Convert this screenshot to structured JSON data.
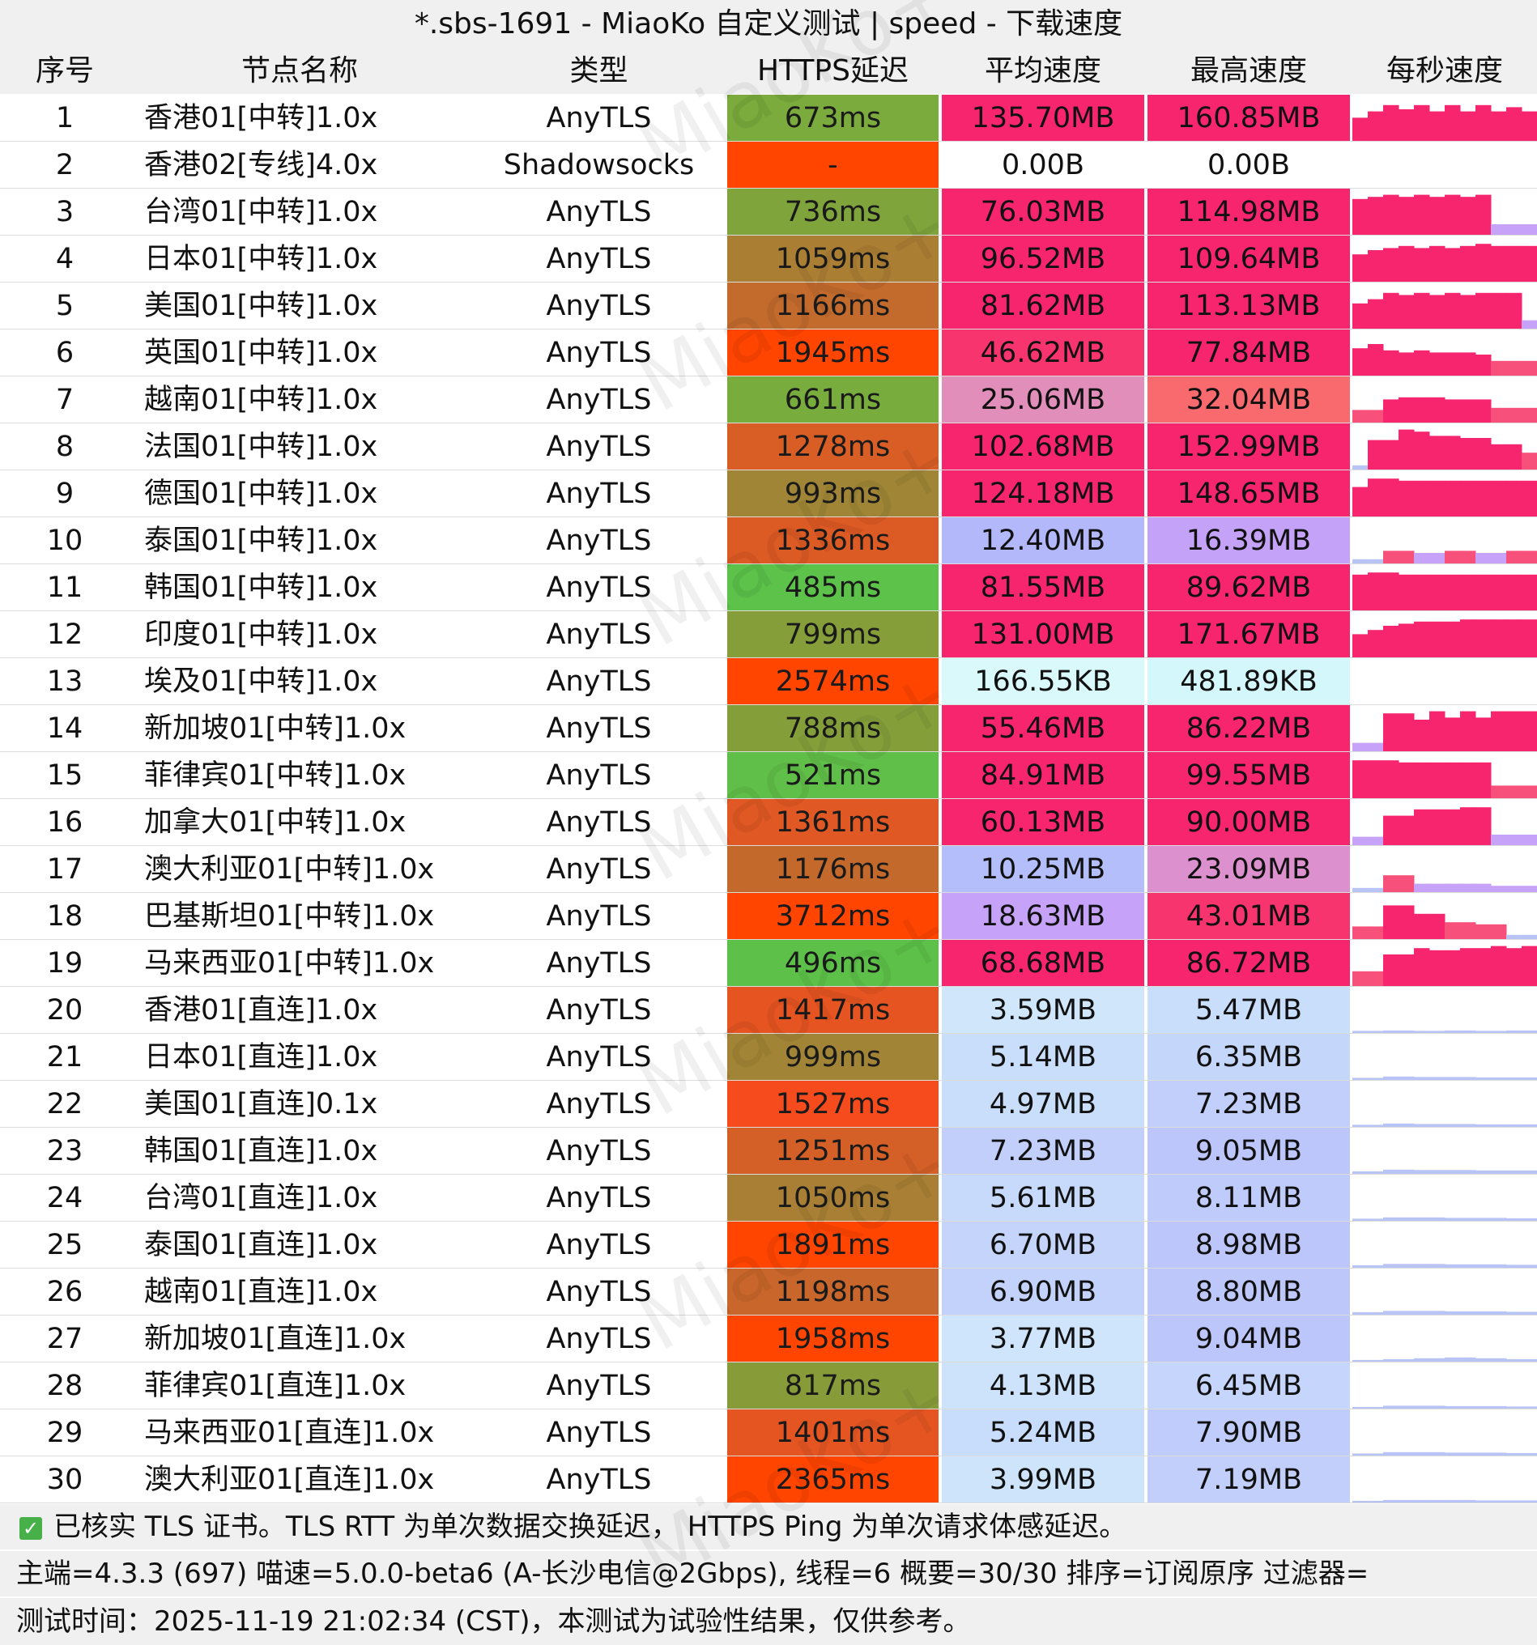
{
  "window": {
    "title": "*.sbs-1691 - MiaoKo 自定义测试 | speed - 下载速度"
  },
  "watermark": "MiaoKo+",
  "columns": {
    "index": "序号",
    "name": "节点名称",
    "type": "类型",
    "latency": "HTTPS延迟",
    "avg_speed": "平均速度",
    "max_speed": "最高速度",
    "per_second": "每秒速度"
  },
  "rows": [
    {
      "idx": "1",
      "name": "香港01[中转]1.0x",
      "type": "AnyTLS",
      "latency": "673ms",
      "avg": "135.70MB",
      "max": "160.85MB",
      "lat_color": "#7aab3c",
      "avg_color": "#f7246e",
      "max_color": "#f7246e"
    },
    {
      "idx": "2",
      "name": "香港02[专线]4.0x",
      "type": "Shadowsocks",
      "latency": "-",
      "avg": "0.00B",
      "max": "0.00B",
      "lat_color": "#ff4500",
      "avg_color": "#ffffff",
      "max_color": "#ffffff"
    },
    {
      "idx": "3",
      "name": "台湾01[中转]1.0x",
      "type": "AnyTLS",
      "latency": "736ms",
      "avg": "76.03MB",
      "max": "114.98MB",
      "lat_color": "#7ea43b",
      "avg_color": "#f7246e",
      "max_color": "#f7246e"
    },
    {
      "idx": "4",
      "name": "日本01[中转]1.0x",
      "type": "AnyTLS",
      "latency": "1059ms",
      "avg": "96.52MB",
      "max": "109.64MB",
      "lat_color": "#aa7e33",
      "avg_color": "#f7246e",
      "max_color": "#f7246e"
    },
    {
      "idx": "5",
      "name": "美国01[中转]1.0x",
      "type": "AnyTLS",
      "latency": "1166ms",
      "avg": "81.62MB",
      "max": "113.13MB",
      "lat_color": "#c36b2d",
      "avg_color": "#f7246e",
      "max_color": "#f7246e"
    },
    {
      "idx": "6",
      "name": "英国01[中转]1.0x",
      "type": "AnyTLS",
      "latency": "1945ms",
      "avg": "46.62MB",
      "max": "77.84MB",
      "lat_color": "#ff4500",
      "avg_color": "#f7346e",
      "max_color": "#f7246e"
    },
    {
      "idx": "7",
      "name": "越南01[中转]1.0x",
      "type": "AnyTLS",
      "latency": "661ms",
      "avg": "25.06MB",
      "max": "32.04MB",
      "lat_color": "#78ad3d",
      "avg_color": "#e18ebb",
      "max_color": "#f86a6e"
    },
    {
      "idx": "8",
      "name": "法国01[中转]1.0x",
      "type": "AnyTLS",
      "latency": "1278ms",
      "avg": "102.68MB",
      "max": "152.99MB",
      "lat_color": "#d85e26",
      "avg_color": "#f7246e",
      "max_color": "#f7246e"
    },
    {
      "idx": "9",
      "name": "德国01[中转]1.0x",
      "type": "AnyTLS",
      "latency": "993ms",
      "avg": "124.18MB",
      "max": "148.65MB",
      "lat_color": "#9f8535",
      "avg_color": "#f7246e",
      "max_color": "#f7246e"
    },
    {
      "idx": "10",
      "name": "泰国01[中转]1.0x",
      "type": "AnyTLS",
      "latency": "1336ms",
      "avg": "12.40MB",
      "max": "16.39MB",
      "lat_color": "#dc5a24",
      "avg_color": "#b3b8fa",
      "max_color": "#c3a2f8"
    },
    {
      "idx": "11",
      "name": "韩国01[中转]1.0x",
      "type": "AnyTLS",
      "latency": "485ms",
      "avg": "81.55MB",
      "max": "89.62MB",
      "lat_color": "#5cc24a",
      "avg_color": "#f7246e",
      "max_color": "#f7246e"
    },
    {
      "idx": "12",
      "name": "印度01[中转]1.0x",
      "type": "AnyTLS",
      "latency": "799ms",
      "avg": "131.00MB",
      "max": "171.67MB",
      "lat_color": "#859e3a",
      "avg_color": "#f7246e",
      "max_color": "#f7246e"
    },
    {
      "idx": "13",
      "name": "埃及01[中转]1.0x",
      "type": "AnyTLS",
      "latency": "2574ms",
      "avg": "166.55KB",
      "max": "481.89KB",
      "lat_color": "#ff4500",
      "avg_color": "#d9f9fb",
      "max_color": "#d4f7fb"
    },
    {
      "idx": "14",
      "name": "新加坡01[中转]1.0x",
      "type": "AnyTLS",
      "latency": "788ms",
      "avg": "55.46MB",
      "max": "86.22MB",
      "lat_color": "#849f3a",
      "avg_color": "#f7246e",
      "max_color": "#f7246e"
    },
    {
      "idx": "15",
      "name": "菲律宾01[中转]1.0x",
      "type": "AnyTLS",
      "latency": "521ms",
      "avg": "84.91MB",
      "max": "99.55MB",
      "lat_color": "#60bf48",
      "avg_color": "#f7246e",
      "max_color": "#f7246e"
    },
    {
      "idx": "16",
      "name": "加拿大01[中转]1.0x",
      "type": "AnyTLS",
      "latency": "1361ms",
      "avg": "60.13MB",
      "max": "90.00MB",
      "lat_color": "#e05823",
      "avg_color": "#f7246e",
      "max_color": "#f7246e"
    },
    {
      "idx": "17",
      "name": "澳大利亚01[中转]1.0x",
      "type": "AnyTLS",
      "latency": "1176ms",
      "avg": "10.25MB",
      "max": "23.09MB",
      "lat_color": "#c4692c",
      "avg_color": "#b3befa",
      "max_color": "#dc90cd"
    },
    {
      "idx": "18",
      "name": "巴基斯坦01[中转]1.0x",
      "type": "AnyTLS",
      "latency": "3712ms",
      "avg": "18.63MB",
      "max": "43.01MB",
      "lat_color": "#ff4500",
      "avg_color": "#c6a2f8",
      "max_color": "#f7346e"
    },
    {
      "idx": "19",
      "name": "马来西亚01[中转]1.0x",
      "type": "AnyTLS",
      "latency": "496ms",
      "avg": "68.68MB",
      "max": "86.72MB",
      "lat_color": "#5dc149",
      "avg_color": "#f7246e",
      "max_color": "#f7246e"
    },
    {
      "idx": "20",
      "name": "香港01[直连]1.0x",
      "type": "AnyTLS",
      "latency": "1417ms",
      "avg": "3.59MB",
      "max": "5.47MB",
      "lat_color": "#e65421",
      "avg_color": "#cfe6fb",
      "max_color": "#c9defb"
    },
    {
      "idx": "21",
      "name": "日本01[直连]1.0x",
      "type": "AnyTLS",
      "latency": "999ms",
      "avg": "5.14MB",
      "max": "6.35MB",
      "lat_color": "#a18435",
      "avg_color": "#c9defb",
      "max_color": "#c5d6fb"
    },
    {
      "idx": "22",
      "name": "美国01[直连]0.1x",
      "type": "AnyTLS",
      "latency": "1527ms",
      "avg": "4.97MB",
      "max": "7.23MB",
      "lat_color": "#f54b1d",
      "avg_color": "#c9defb",
      "max_color": "#c2cffb"
    },
    {
      "idx": "23",
      "name": "韩国01[直连]1.0x",
      "type": "AnyTLS",
      "latency": "1251ms",
      "avg": "7.23MB",
      "max": "9.05MB",
      "lat_color": "#d46027",
      "avg_color": "#c2cffb",
      "max_color": "#bcc6fa"
    },
    {
      "idx": "24",
      "name": "台湾01[直连]1.0x",
      "type": "AnyTLS",
      "latency": "1050ms",
      "avg": "5.61MB",
      "max": "8.11MB",
      "lat_color": "#a87f34",
      "avg_color": "#c7dafb",
      "max_color": "#bfcbfb"
    },
    {
      "idx": "25",
      "name": "泰国01[直连]1.0x",
      "type": "AnyTLS",
      "latency": "1891ms",
      "avg": "6.70MB",
      "max": "8.98MB",
      "lat_color": "#ff4500",
      "avg_color": "#c4d4fb",
      "max_color": "#bcc6fa"
    },
    {
      "idx": "26",
      "name": "越南01[直连]1.0x",
      "type": "AnyTLS",
      "latency": "1198ms",
      "avg": "6.90MB",
      "max": "8.80MB",
      "lat_color": "#c8662b",
      "avg_color": "#c3d2fb",
      "max_color": "#bdc7fa"
    },
    {
      "idx": "27",
      "name": "新加坡01[直连]1.0x",
      "type": "AnyTLS",
      "latency": "1958ms",
      "avg": "3.77MB",
      "max": "9.04MB",
      "lat_color": "#ff4500",
      "avg_color": "#cfe5fb",
      "max_color": "#bcc6fa"
    },
    {
      "idx": "28",
      "name": "菲律宾01[直连]1.0x",
      "type": "AnyTLS",
      "latency": "817ms",
      "avg": "4.13MB",
      "max": "6.45MB",
      "lat_color": "#879c39",
      "avg_color": "#cde3fb",
      "max_color": "#c5d5fb"
    },
    {
      "idx": "29",
      "name": "马来西亚01[直连]1.0x",
      "type": "AnyTLS",
      "latency": "1401ms",
      "avg": "5.24MB",
      "max": "7.90MB",
      "lat_color": "#e45522",
      "avg_color": "#c8dcfb",
      "max_color": "#c0ccfb"
    },
    {
      "idx": "30",
      "name": "澳大利亚01[直连]1.0x",
      "type": "AnyTLS",
      "latency": "2365ms",
      "avg": "3.99MB",
      "max": "7.19MB",
      "lat_color": "#ff4500",
      "avg_color": "#cee4fb",
      "max_color": "#c2cffb"
    }
  ],
  "sparklines": [
    [
      0.55,
      0.7,
      0.85,
      0.75,
      0.85,
      0.7,
      0.85,
      0.7,
      0.85,
      0.7,
      0.8,
      0.7
    ],
    [],
    [
      0.85,
      0.9,
      0.95,
      0.9,
      0.95,
      0.9,
      0.95,
      0.9,
      0.95,
      0.25,
      0.25,
      0.25
    ],
    [
      0.65,
      0.75,
      0.8,
      0.85,
      0.8,
      0.85,
      0.8,
      0.85,
      0.9,
      0.85,
      0.85,
      0.85
    ],
    [
      0.6,
      0.7,
      0.85,
      0.8,
      0.85,
      0.8,
      0.85,
      0.8,
      0.85,
      0.85,
      0.85,
      0.2
    ],
    [
      0.65,
      0.75,
      0.6,
      0.55,
      0.6,
      0.55,
      0.55,
      0.55,
      0.5,
      0.35,
      0.35,
      0.35
    ],
    [
      0.3,
      0.3,
      0.55,
      0.6,
      0.6,
      0.6,
      0.55,
      0.55,
      0.55,
      0.35,
      0.35,
      0.35
    ],
    [
      0.1,
      0.7,
      0.7,
      0.95,
      0.9,
      0.8,
      0.8,
      0.75,
      0.75,
      0.6,
      0.6,
      0.4
    ],
    [
      0.7,
      0.9,
      0.9,
      0.85,
      0.85,
      0.85,
      0.85,
      0.85,
      0.85,
      0.85,
      0.85,
      0.85
    ],
    [
      0.1,
      0.1,
      0.3,
      0.3,
      0.25,
      0.25,
      0.3,
      0.3,
      0.25,
      0.25,
      0.3,
      0.3
    ],
    [
      0.85,
      0.9,
      0.9,
      0.85,
      0.85,
      0.85,
      0.85,
      0.85,
      0.85,
      0.85,
      0.85,
      0.85
    ],
    [
      0.55,
      0.65,
      0.75,
      0.8,
      0.85,
      0.85,
      0.85,
      0.9,
      0.9,
      0.9,
      0.9,
      0.9
    ],
    [],
    [
      0.2,
      0.2,
      0.9,
      0.9,
      0.75,
      0.95,
      0.8,
      0.95,
      0.8,
      0.95,
      0.95,
      0.95
    ],
    [
      0.9,
      0.9,
      0.9,
      0.85,
      0.85,
      0.85,
      0.85,
      0.85,
      0.85,
      0.3,
      0.3,
      0.3
    ],
    [
      0.2,
      0.2,
      0.7,
      0.7,
      0.85,
      0.85,
      0.85,
      0.9,
      0.9,
      0.25,
      0.25,
      0.25
    ],
    [
      0.1,
      0.1,
      0.4,
      0.4,
      0.2,
      0.2,
      0.2,
      0.2,
      0.2,
      0.15,
      0.15,
      0.15
    ],
    [
      0.3,
      0.3,
      0.8,
      0.8,
      0.6,
      0.6,
      0.4,
      0.4,
      0.35,
      0.35,
      0.1,
      0.1
    ],
    [
      0.35,
      0.35,
      0.75,
      0.75,
      0.9,
      0.85,
      0.85,
      0.9,
      0.9,
      0.95,
      0.9,
      0.95
    ],
    [
      0.05,
      0.05,
      0.06,
      0.06,
      0.05,
      0.05,
      0.06,
      0.06,
      0.05,
      0.05,
      0.06,
      0.06
    ],
    [
      0.05,
      0.05,
      0.08,
      0.08,
      0.07,
      0.07,
      0.07,
      0.07,
      0.06,
      0.06,
      0.06,
      0.06
    ],
    [
      0.05,
      0.05,
      0.08,
      0.08,
      0.07,
      0.07,
      0.07,
      0.07,
      0.06,
      0.06,
      0.06,
      0.06
    ],
    [
      0.06,
      0.06,
      0.1,
      0.1,
      0.09,
      0.09,
      0.09,
      0.09,
      0.08,
      0.08,
      0.08,
      0.08
    ],
    [
      0.05,
      0.05,
      0.08,
      0.08,
      0.08,
      0.08,
      0.07,
      0.07,
      0.07,
      0.07,
      0.06,
      0.06
    ],
    [
      0.06,
      0.06,
      0.09,
      0.09,
      0.09,
      0.09,
      0.08,
      0.08,
      0.08,
      0.08,
      0.07,
      0.07
    ],
    [
      0.06,
      0.06,
      0.09,
      0.09,
      0.09,
      0.09,
      0.08,
      0.08,
      0.08,
      0.08,
      0.07,
      0.07
    ],
    [
      0.04,
      0.04,
      0.06,
      0.06,
      0.08,
      0.08,
      0.1,
      0.1,
      0.08,
      0.08,
      0.06,
      0.06
    ],
    [
      0.04,
      0.04,
      0.07,
      0.07,
      0.07,
      0.07,
      0.06,
      0.06,
      0.06,
      0.06,
      0.05,
      0.05
    ],
    [
      0.05,
      0.05,
      0.08,
      0.08,
      0.08,
      0.08,
      0.07,
      0.07,
      0.07,
      0.07,
      0.06,
      0.06
    ],
    [
      0.04,
      0.04,
      0.06,
      0.06,
      0.06,
      0.06,
      0.06,
      0.06,
      0.05,
      0.05,
      0.05,
      0.05
    ]
  ],
  "footer": {
    "tls_note": "已核实 TLS 证书。TLS RTT 为单次数据交换延迟， HTTPS Ping 为单次请求体感延迟。",
    "info": "主端=4.3.3 (697) 喵速=5.0.0-beta6 (A-长沙电信@2Gbps), 线程=6 概要=30/30 排序=订阅原序 过滤器=",
    "time": "测试时间：2025-11-19 21:02:34 (CST)，本测试为试验性结果，仅供参考。"
  }
}
